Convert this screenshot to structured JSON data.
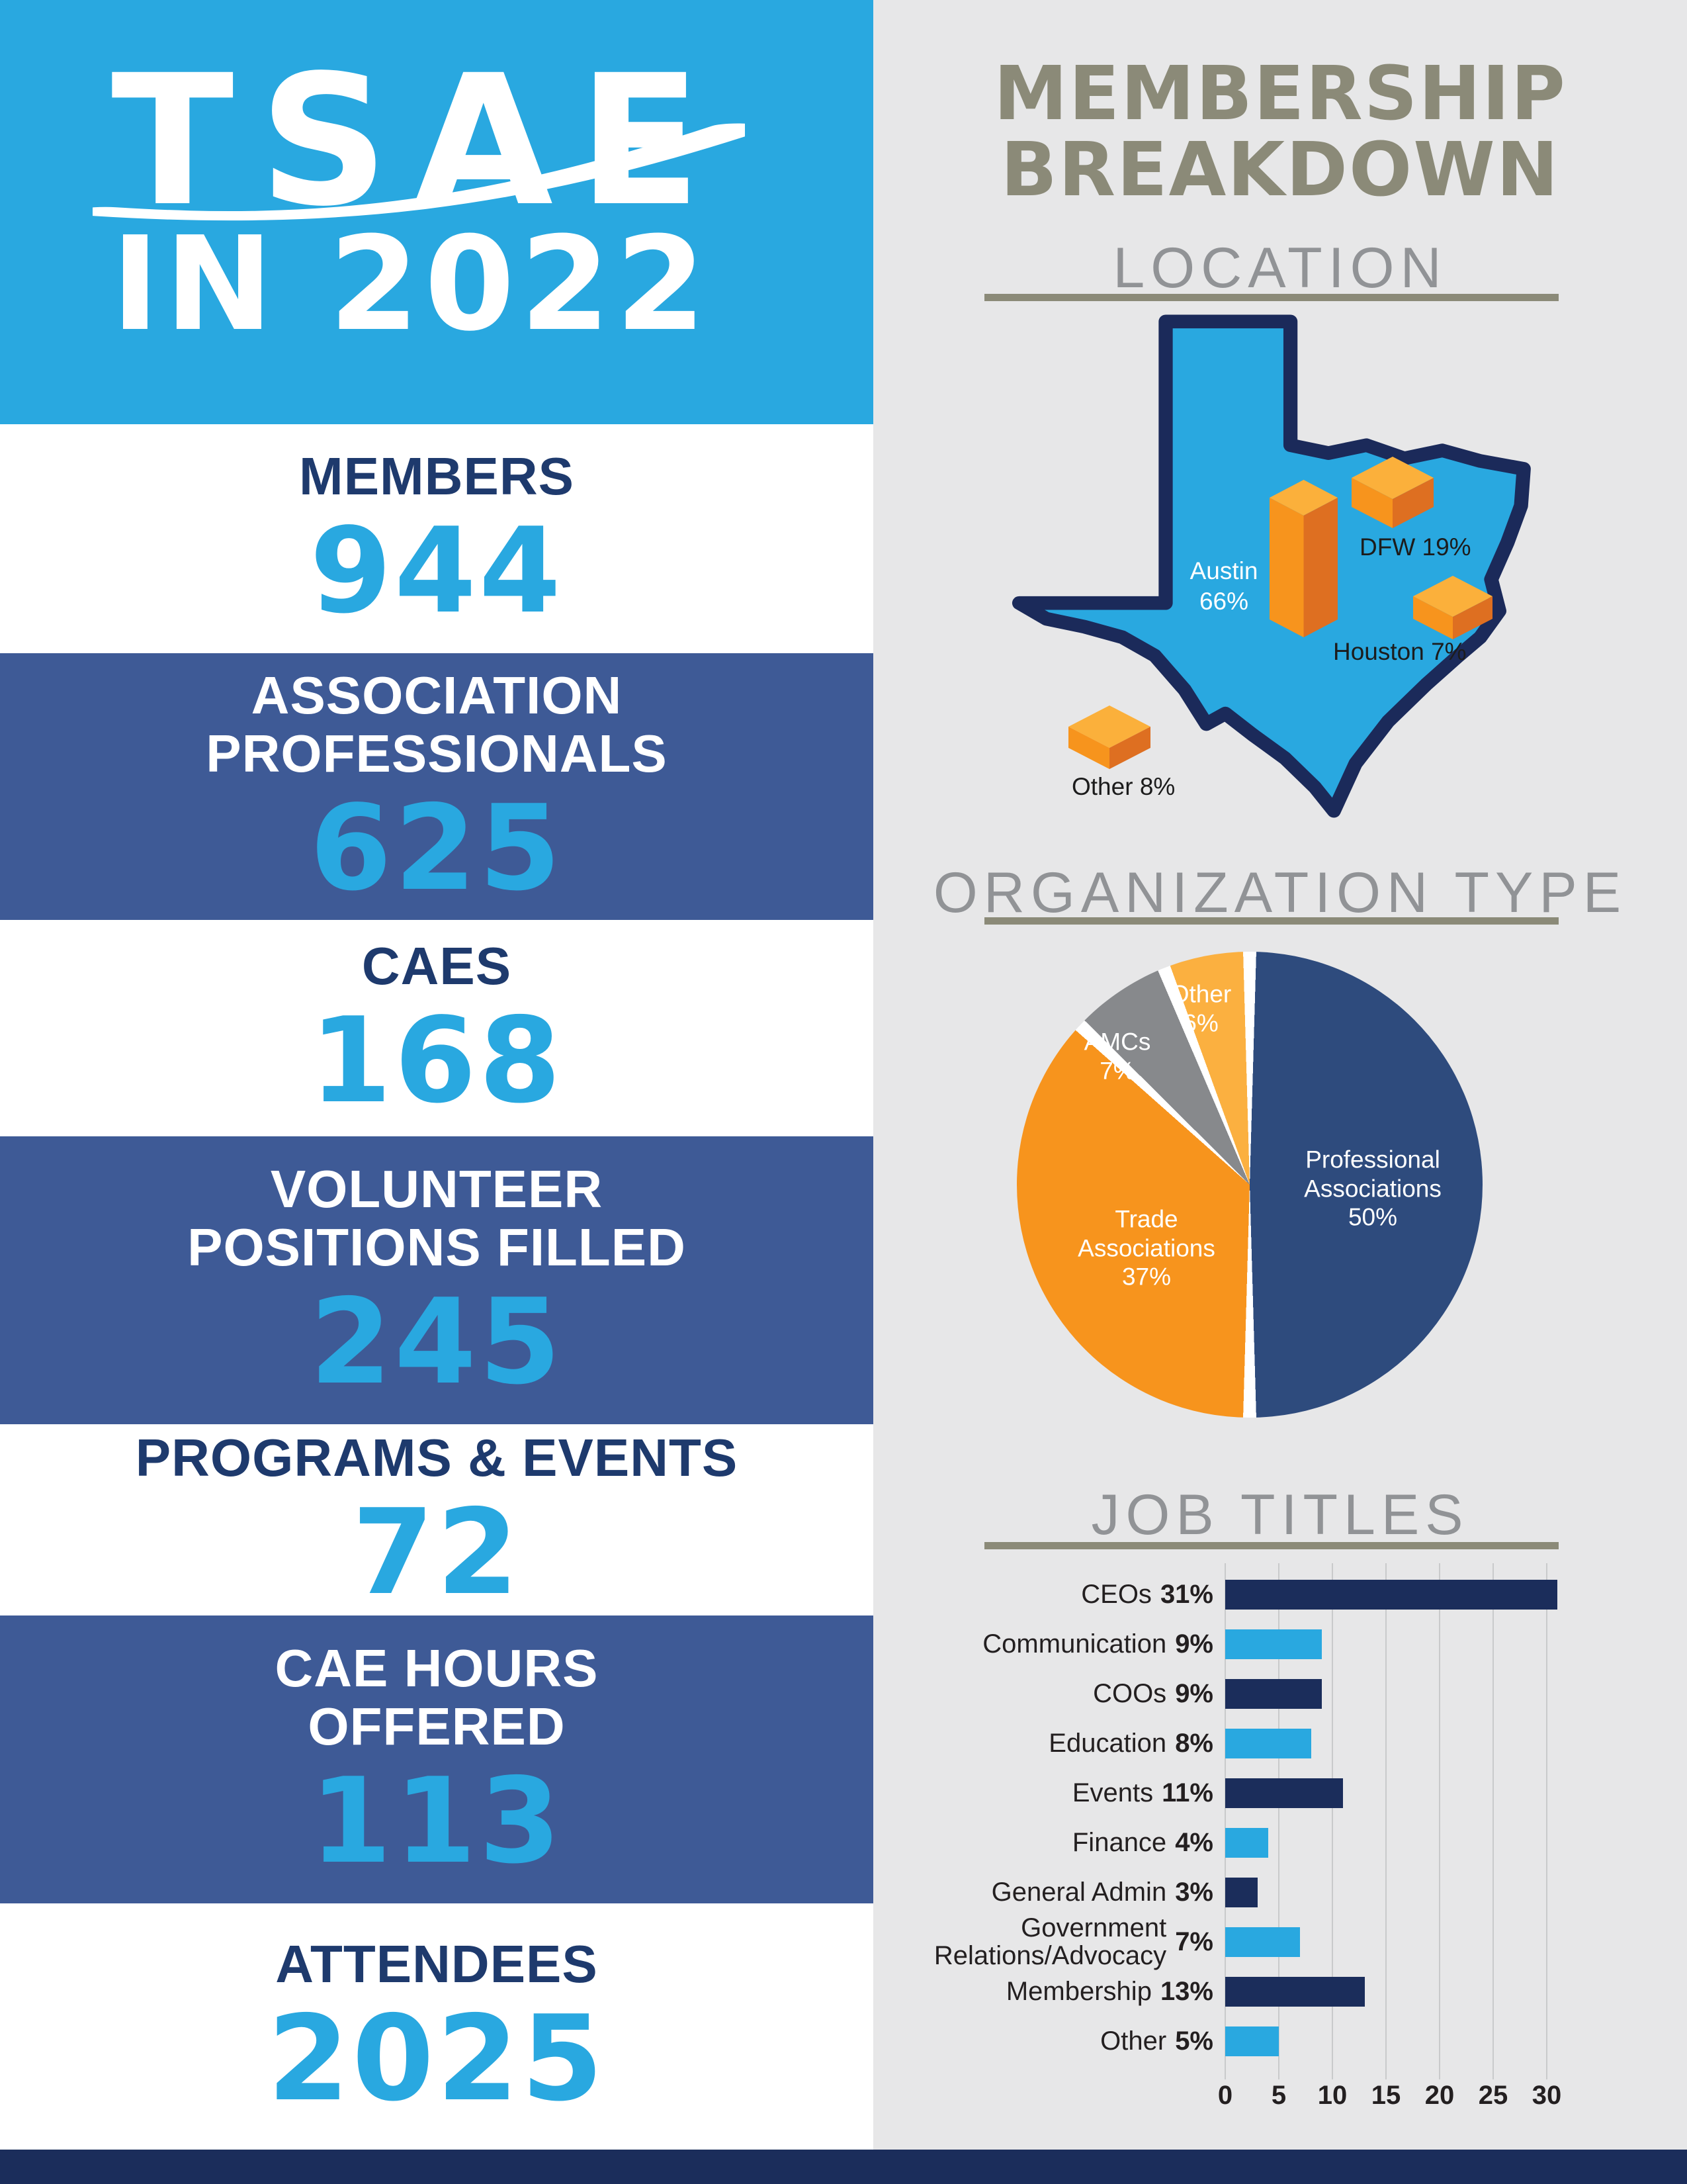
{
  "colors": {
    "brand_blue": "#29a8e0",
    "band_navy": "#3e5a96",
    "dark_navy": "#1b2d5b",
    "orange": "#f7941d",
    "orange_dark": "#de6f21",
    "orange_light": "#fbb03b",
    "pie_blue": "#2e4b7d",
    "pie_gray": "#87898c",
    "pie_yellow": "#fbb040",
    "panel_gray": "#e7e7e8",
    "heading_olive": "#8b8a78",
    "heading_gray": "#919396",
    "map_border_navy": "#1b2a5a",
    "gridline_gray": "#c9cacb",
    "text_dark": "#231f20",
    "label_navy": "#1e3a6d"
  },
  "left": {
    "logo_text": "TSAE",
    "subtitle": "IN 2022",
    "stats": [
      {
        "label": "MEMBERS",
        "value": "944"
      },
      {
        "label": "ASSOCIATION\nPROFESSIONALS",
        "value": "625"
      },
      {
        "label": "CAES",
        "value": "168"
      },
      {
        "label": "VOLUNTEER\nPOSITIONS FILLED",
        "value": "245"
      },
      {
        "label": "PROGRAMS & EVENTS",
        "value": "72"
      },
      {
        "label": "CAE HOURS\nOFFERED",
        "value": "113"
      },
      {
        "label": "ATTENDEES",
        "value": "2025"
      }
    ]
  },
  "right": {
    "title": "MEMBERSHIP\nBREAKDOWN",
    "location_heading": "LOCATION",
    "organization_heading": "ORGANIZATION TYPE",
    "job_titles_heading": "JOB TITLES"
  },
  "chart_data": [
    {
      "type": "map",
      "title": "LOCATION",
      "region": "Texas",
      "points": [
        {
          "label": "Austin",
          "value": 66,
          "unit": "%",
          "label_color": "#ffffff"
        },
        {
          "label": "DFW",
          "value": 19,
          "unit": "%",
          "label_color": "#1c1c1c"
        },
        {
          "label": "Houston",
          "value": 7,
          "unit": "%",
          "label_color": "#1c1c1c"
        },
        {
          "label": "Other",
          "value": 8,
          "unit": "%",
          "label_color": "#1c1c1c"
        }
      ]
    },
    {
      "type": "pie",
      "title": "ORGANIZATION TYPE",
      "start_angle_deg": 0,
      "direction": "clockwise",
      "slices": [
        {
          "label": "Professional Associations",
          "value": 50,
          "color": "#2e4b7d"
        },
        {
          "label": "Trade Associations",
          "value": 37,
          "color": "#f7941d"
        },
        {
          "label": "AMCs",
          "value": 7,
          "color": "#87898c"
        },
        {
          "label": "Other",
          "value": 6,
          "color": "#fbb040"
        }
      ]
    },
    {
      "type": "bar",
      "title": "JOB TITLES",
      "orientation": "horizontal",
      "categories": [
        "CEOs",
        "Communication",
        "COOs",
        "Education",
        "Events",
        "Finance",
        "General Admin",
        "Government Relations/Advocacy",
        "Membership",
        "Other"
      ],
      "values": [
        31,
        9,
        9,
        8,
        11,
        4,
        3,
        7,
        13,
        5
      ],
      "unit": "%",
      "xlim": [
        0,
        30
      ],
      "xticks": [
        0,
        5,
        10,
        15,
        20,
        25,
        30
      ],
      "grid": true,
      "bar_color_primary": "#1b2d5b",
      "bar_color_secondary": "#29a8e0"
    }
  ]
}
